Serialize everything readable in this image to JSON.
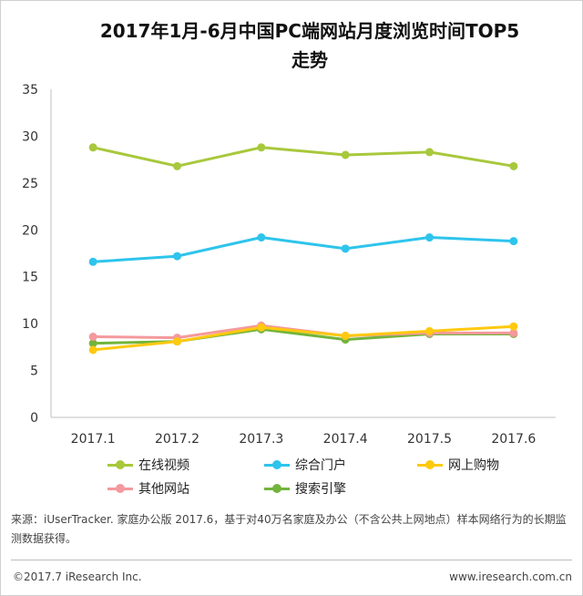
{
  "chart_data": {
    "type": "line",
    "title": "2017年1月-6月中国PC端网站月度浏览时间TOP5走势",
    "title_lines": [
      "2017年1月-6月中国PC端网站月度浏览时间TOP5",
      "走势"
    ],
    "categories": [
      "2017.1",
      "2017.2",
      "2017.3",
      "2017.4",
      "2017.5",
      "2017.6"
    ],
    "ylim": [
      0,
      35
    ],
    "yticks": [
      0,
      5,
      10,
      15,
      20,
      25,
      30,
      35
    ],
    "grid": false,
    "legend_position": "bottom",
    "series": [
      {
        "name": "在线视频",
        "color": "#a8c83c",
        "values": [
          28.8,
          26.8,
          28.8,
          28.0,
          28.3,
          26.8
        ]
      },
      {
        "name": "综合门户",
        "color": "#2ec4ec",
        "values": [
          16.6,
          17.2,
          19.2,
          18.0,
          19.2,
          18.8
        ]
      },
      {
        "name": "网上购物",
        "color": "#ffc90e",
        "values": [
          7.2,
          8.1,
          9.6,
          8.7,
          9.2,
          9.7
        ]
      },
      {
        "name": "其他网站",
        "color": "#f4999d",
        "values": [
          8.6,
          8.5,
          9.8,
          8.7,
          9.0,
          9.0
        ]
      },
      {
        "name": "搜索引擎",
        "color": "#72b43c",
        "values": [
          7.9,
          8.1,
          9.4,
          8.3,
          8.9,
          8.9
        ]
      }
    ]
  },
  "source": {
    "text": "来源：iUserTracker. 家庭办公版 2017.6，基于对40万名家庭及办公（不含公共上网地点）样本网络行为的长期监测数据获得。"
  },
  "footer": {
    "copyright": "©2017.7 iResearch Inc.",
    "website": "www.iresearch.com.cn"
  }
}
